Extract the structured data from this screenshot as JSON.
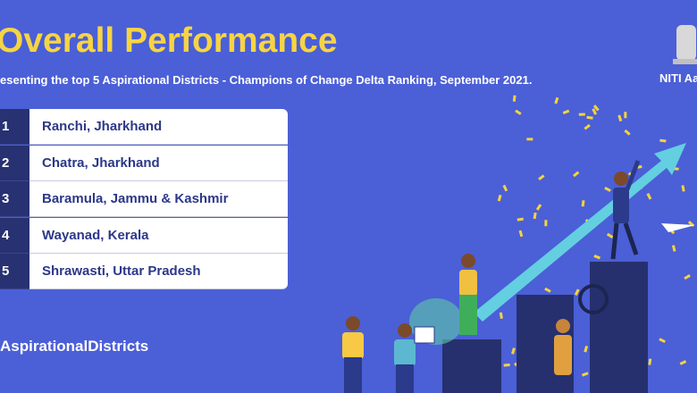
{
  "header": {
    "title": "Overall Performance",
    "subtitle": "esenting the top 5 Aspirational Districts - Champions of Change Delta Ranking, September 2021.",
    "logo_text": "NITI Aa"
  },
  "table": {
    "rows": [
      [
        1,
        "Ranchi, Jharkhand"
      ],
      [
        2,
        "Chatra, Jharkhand"
      ],
      [
        3,
        "Baramula, Jammu & Kashmir"
      ],
      [
        4,
        "Wayanad, Kerala"
      ],
      [
        5,
        "Shrawasti, Uttar Pradesh"
      ]
    ]
  },
  "footer": {
    "hashtag": "AspirationalDistricts"
  }
}
